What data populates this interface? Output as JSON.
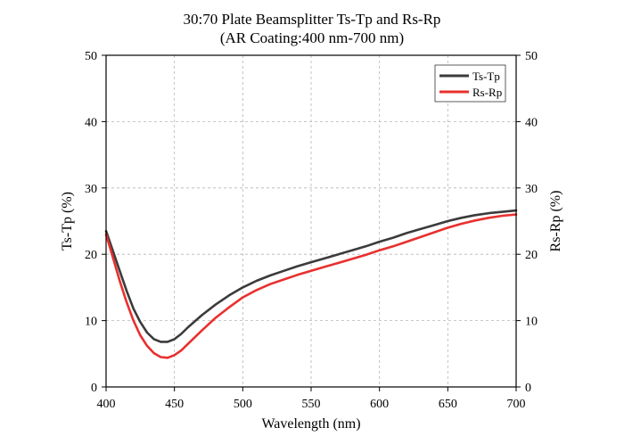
{
  "chart_data": {
    "type": "line",
    "title": "30:70 Plate Beamsplitter Ts-Tp and Rs-Rp",
    "subtitle": "(AR Coating:400 nm-700 nm)",
    "xlabel": "Wavelength (nm)",
    "ylabel_left": "Ts-Tp (%)",
    "ylabel_right": "Rs-Rp (%)",
    "xlim": [
      400,
      700
    ],
    "ylim": [
      0,
      50
    ],
    "x_ticks": [
      "400",
      "450",
      "500",
      "550",
      "600",
      "650",
      "700"
    ],
    "y_ticks": [
      "0",
      "10",
      "20",
      "30",
      "40",
      "50"
    ],
    "grid": true,
    "legend_position": "top-right",
    "series": [
      {
        "name": "Ts-Tp",
        "color": "#3b3b3b",
        "x": [
          400,
          405,
          410,
          415,
          420,
          425,
          430,
          435,
          440,
          445,
          450,
          455,
          460,
          470,
          480,
          490,
          500,
          510,
          520,
          530,
          540,
          550,
          560,
          570,
          580,
          590,
          600,
          610,
          620,
          630,
          640,
          650,
          660,
          670,
          680,
          690,
          700
        ],
        "values": [
          23.5,
          20.5,
          17.5,
          14.5,
          11.8,
          9.8,
          8.2,
          7.2,
          6.8,
          6.8,
          7.2,
          8.0,
          9.0,
          10.8,
          12.4,
          13.8,
          15.0,
          16.0,
          16.8,
          17.5,
          18.2,
          18.8,
          19.4,
          20.0,
          20.6,
          21.2,
          21.9,
          22.5,
          23.2,
          23.8,
          24.4,
          25.0,
          25.5,
          25.9,
          26.2,
          26.4,
          26.6
        ]
      },
      {
        "name": "Rs-Rp",
        "color": "#e8302e",
        "x": [
          400,
          405,
          410,
          415,
          420,
          425,
          430,
          435,
          440,
          445,
          450,
          455,
          460,
          470,
          480,
          490,
          500,
          510,
          520,
          530,
          540,
          550,
          560,
          570,
          580,
          590,
          600,
          610,
          620,
          630,
          640,
          650,
          660,
          670,
          680,
          690,
          700
        ],
        "values": [
          23.0,
          19.5,
          16.0,
          12.8,
          10.0,
          7.8,
          6.2,
          5.1,
          4.5,
          4.4,
          4.8,
          5.5,
          6.5,
          8.5,
          10.4,
          12.0,
          13.5,
          14.6,
          15.5,
          16.2,
          16.9,
          17.5,
          18.1,
          18.7,
          19.3,
          19.9,
          20.6,
          21.2,
          21.9,
          22.6,
          23.3,
          24.0,
          24.6,
          25.1,
          25.5,
          25.8,
          26.0
        ]
      }
    ]
  }
}
